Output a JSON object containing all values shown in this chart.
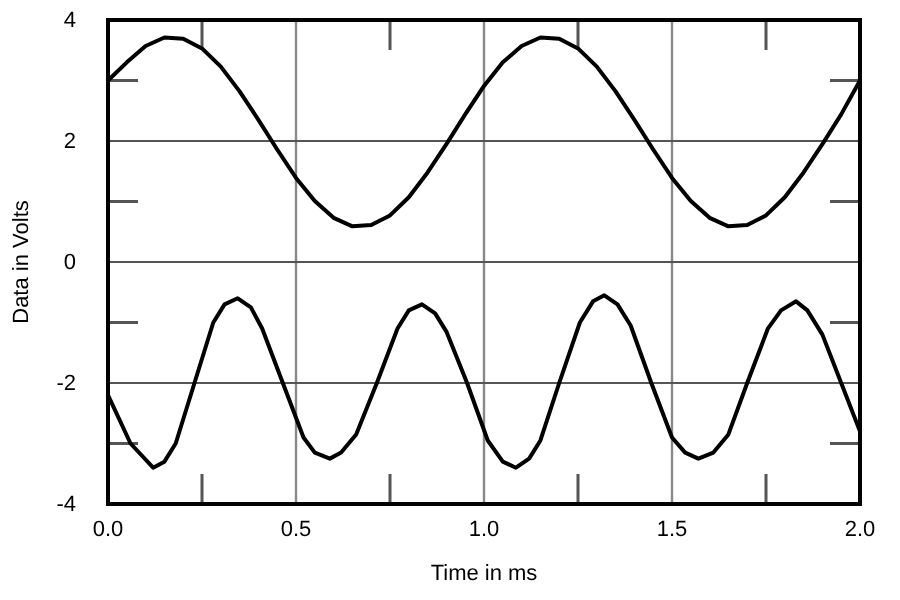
{
  "chart_data": {
    "type": "line",
    "xlabel": "Time in ms",
    "ylabel": "Data in Volts",
    "xlim": [
      0,
      2
    ],
    "ylim": [
      -4,
      4
    ],
    "xticks": [
      {
        "value": 0,
        "label": "0.0"
      },
      {
        "value": 0.25,
        "label": null
      },
      {
        "value": 0.5,
        "label": "0.5"
      },
      {
        "value": 0.75,
        "label": null
      },
      {
        "value": 1,
        "label": "1.0"
      },
      {
        "value": 1.25,
        "label": null
      },
      {
        "value": 1.5,
        "label": "1.5"
      },
      {
        "value": 1.75,
        "label": null
      },
      {
        "value": 2,
        "label": "2.0"
      }
    ],
    "yticks": [
      -4,
      {
        "value": -3,
        "label": null
      },
      -2,
      {
        "value": -1,
        "label": null
      },
      0,
      {
        "value": 1,
        "label": null
      },
      2,
      {
        "value": 3,
        "label": null
      },
      4
    ],
    "grid": true,
    "marker": "none",
    "line_style": "solid",
    "series": [
      {
        "color": "#000000",
        "x": [
          0,
          0.05,
          0.1,
          0.15,
          0.2,
          0.25,
          0.3,
          0.35,
          0.4,
          0.45,
          0.5,
          0.55,
          0.6,
          0.65,
          0.7,
          0.75,
          0.8,
          0.85,
          0.9,
          0.95,
          1,
          1.05,
          1.1,
          1.15,
          1.2,
          1.25,
          1.3,
          1.35,
          1.4,
          1.45,
          1.5,
          1.55,
          1.6,
          1.65,
          1.7,
          1.75,
          1.8,
          1.85,
          1.9,
          1.95,
          2
        ],
        "values": [
          3.0,
          3.3,
          3.57,
          3.71,
          3.69,
          3.53,
          3.23,
          2.82,
          2.35,
          1.86,
          1.39,
          1.01,
          0.73,
          0.59,
          0.61,
          0.77,
          1.07,
          1.48,
          1.95,
          2.44,
          2.91,
          3.3,
          3.57,
          3.71,
          3.69,
          3.53,
          3.23,
          2.82,
          2.35,
          1.86,
          1.39,
          1.01,
          0.73,
          0.59,
          0.61,
          0.77,
          1.07,
          1.48,
          1.95,
          2.44,
          3.0
        ]
      },
      {
        "color": "#000000",
        "x": [
          0,
          0.06,
          0.12,
          0.15,
          0.18,
          0.23,
          0.28,
          0.31,
          0.345,
          0.38,
          0.41,
          0.465,
          0.52,
          0.55,
          0.59,
          0.62,
          0.66,
          0.715,
          0.77,
          0.8,
          0.835,
          0.87,
          0.9,
          0.955,
          1.01,
          1.05,
          1.085,
          1.12,
          1.15,
          1.2,
          1.255,
          1.29,
          1.32,
          1.355,
          1.39,
          1.445,
          1.5,
          1.535,
          1.57,
          1.61,
          1.65,
          1.7,
          1.755,
          1.79,
          1.83,
          1.86,
          1.9,
          1.95,
          2
        ],
        "values": [
          -2.2,
          -3.0,
          -3.4,
          -3.3,
          -3.0,
          -2.0,
          -1.0,
          -0.7,
          -0.6,
          -0.75,
          -1.1,
          -2.0,
          -2.9,
          -3.15,
          -3.25,
          -3.15,
          -2.85,
          -2.0,
          -1.1,
          -0.8,
          -0.7,
          -0.85,
          -1.15,
          -2.0,
          -2.95,
          -3.3,
          -3.4,
          -3.25,
          -2.95,
          -2.0,
          -1.0,
          -0.65,
          -0.55,
          -0.7,
          -1.05,
          -2.0,
          -2.9,
          -3.15,
          -3.25,
          -3.15,
          -2.85,
          -2.0,
          -1.1,
          -0.8,
          -0.65,
          -0.8,
          -1.2,
          -2.0,
          -2.8
        ]
      }
    ]
  }
}
